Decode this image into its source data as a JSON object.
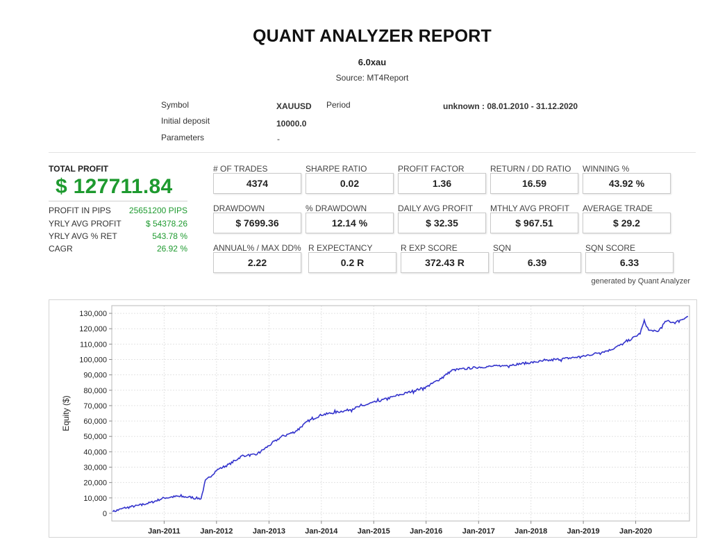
{
  "report": {
    "title": "QUANT ANALYZER REPORT",
    "subtitle": "6.0xau",
    "source": "Source: MT4Report"
  },
  "info": {
    "symbol_label": "Symbol",
    "symbol_value": "XAUUSD",
    "period_label": "Period",
    "period_value": "unknown : 08.01.2010 - 31.12.2020",
    "deposit_label": "Initial deposit",
    "deposit_value": "10000.0",
    "params_label": "Parameters",
    "params_value": "-"
  },
  "profit": {
    "label": "TOTAL PROFIT",
    "value": "$ 127711.84",
    "stats": [
      {
        "label": "PROFIT IN PIPS",
        "value": "25651200 PIPS"
      },
      {
        "label": "YRLY AVG PROFIT",
        "value": "$ 54378.26"
      },
      {
        "label": "YRLY AVG % RET",
        "value": "543.78 %"
      },
      {
        "label": "CAGR",
        "value": "26.92 %"
      }
    ]
  },
  "metrics": [
    {
      "label": "# OF TRADES",
      "value": "4374"
    },
    {
      "label": "SHARPE RATIO",
      "value": "0.02"
    },
    {
      "label": "PROFIT FACTOR",
      "value": "1.36"
    },
    {
      "label": "RETURN / DD RATIO",
      "value": "16.59"
    },
    {
      "label": "WINNING %",
      "value": "43.92 %"
    },
    {
      "label": "DRAWDOWN",
      "value": "$ 7699.36"
    },
    {
      "label": "% DRAWDOWN",
      "value": "12.14 %"
    },
    {
      "label": "DAILY AVG PROFIT",
      "value": "$ 32.35"
    },
    {
      "label": "MTHLY AVG PROFIT",
      "value": "$ 967.51"
    },
    {
      "label": "AVERAGE TRADE",
      "value": "$ 29.2"
    },
    {
      "label": "ANNUAL% / MAX DD%",
      "value": "2.22"
    },
    {
      "label": "R EXPECTANCY",
      "value": "0.2 R"
    },
    {
      "label": "R EXP SCORE",
      "value": "372.43 R"
    },
    {
      "label": "SQN",
      "value": "6.39"
    },
    {
      "label": "SQN SCORE",
      "value": "6.33"
    }
  ],
  "generated_by": "generated by Quant Analyzer",
  "chart_data": {
    "type": "line",
    "title": "",
    "xlabel": "",
    "ylabel": "Equity ($)",
    "ylim": [
      -5000,
      135000
    ],
    "y_ticks": [
      "130,000",
      "120,000",
      "110,000",
      "100,000",
      "90,000",
      "80,000",
      "70,000",
      "60,000",
      "50,000",
      "40,000",
      "30,000",
      "20,000",
      "10,000",
      "0"
    ],
    "x_ticks": [
      "Jan-2011",
      "Jan-2012",
      "Jan-2013",
      "Jan-2014",
      "Jan-2015",
      "Jan-2016",
      "Jan-2017",
      "Jan-2018",
      "Jan-2019",
      "Jan-2020"
    ],
    "grid": true,
    "line_color": "#3333cc",
    "series": [
      {
        "x": [
          "2010-01-08",
          "2010-04-01",
          "2010-07-01",
          "2010-10-01",
          "2011-01-01",
          "2011-04-01",
          "2011-07-01",
          "2011-09-15",
          "2011-10-15",
          "2011-12-01",
          "2012-01-01",
          "2012-04-01",
          "2012-07-01",
          "2012-10-01",
          "2013-01-01",
          "2013-04-01",
          "2013-07-01",
          "2013-10-01",
          "2014-01-01",
          "2014-07-01",
          "2015-01-01",
          "2015-07-01",
          "2016-01-01",
          "2016-04-01",
          "2016-07-01",
          "2017-01-01",
          "2017-07-01",
          "2018-01-01",
          "2018-07-01",
          "2019-01-01",
          "2019-04-01",
          "2019-07-01",
          "2019-10-01",
          "2020-01-01",
          "2020-02-01",
          "2020-03-01",
          "2020-04-01",
          "2020-06-01",
          "2020-08-01",
          "2020-10-01",
          "2020-12-31"
        ],
        "values": [
          1000,
          3500,
          5000,
          7000,
          10000,
          11000,
          10500,
          9500,
          21000,
          25000,
          28000,
          32000,
          37500,
          38000,
          44000,
          50000,
          53000,
          60000,
          64000,
          67000,
          72000,
          77000,
          82000,
          87000,
          93000,
          95000,
          96000,
          98000,
          100000,
          102000,
          104000,
          106000,
          110000,
          115000,
          117000,
          125000,
          119000,
          118000,
          125000,
          124000,
          128000
        ]
      }
    ]
  }
}
